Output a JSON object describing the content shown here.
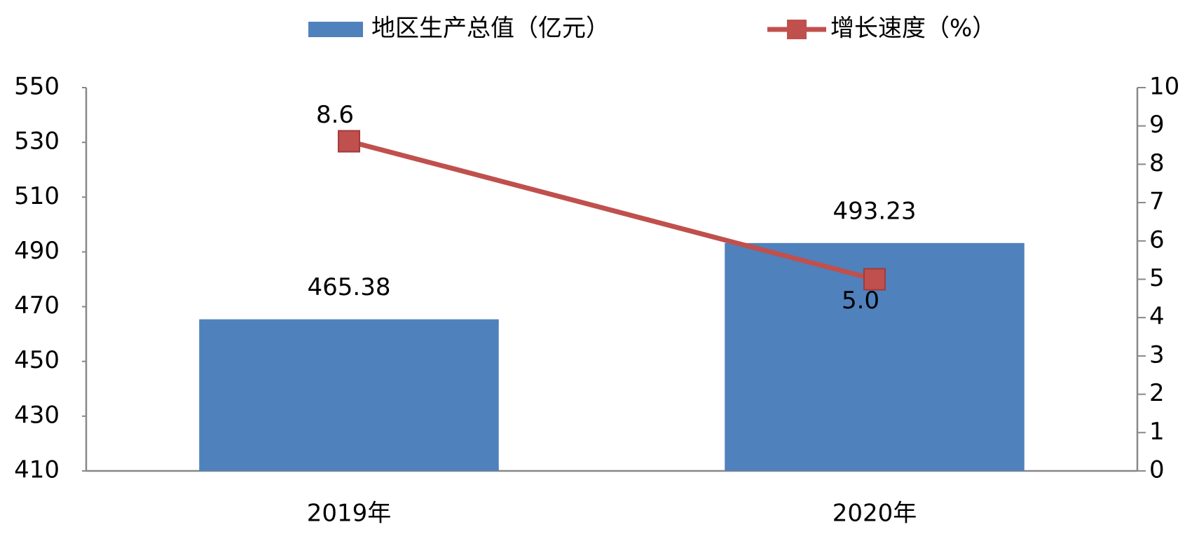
{
  "chart_data": {
    "type": "bar",
    "categories": [
      "2019年",
      "2020年"
    ],
    "series": [
      {
        "name": "地区生产总值（亿元）",
        "color": "#4f81bd",
        "values": [
          465.38,
          493.23
        ]
      },
      {
        "name": "增长速度（%）",
        "color": "#c0504d",
        "type": "line",
        "axis": "y2",
        "values": [
          8.6,
          5.0
        ],
        "value_labels": [
          "8.6",
          "5.0"
        ]
      }
    ],
    "ylim": [
      410,
      550
    ],
    "yticks": [
      410,
      430,
      450,
      470,
      490,
      510,
      530,
      550
    ],
    "y2lim": [
      0,
      10
    ],
    "y2ticks": [
      0,
      1,
      2,
      3,
      4,
      5,
      6,
      7,
      8,
      9,
      10
    ],
    "legend": "top"
  }
}
